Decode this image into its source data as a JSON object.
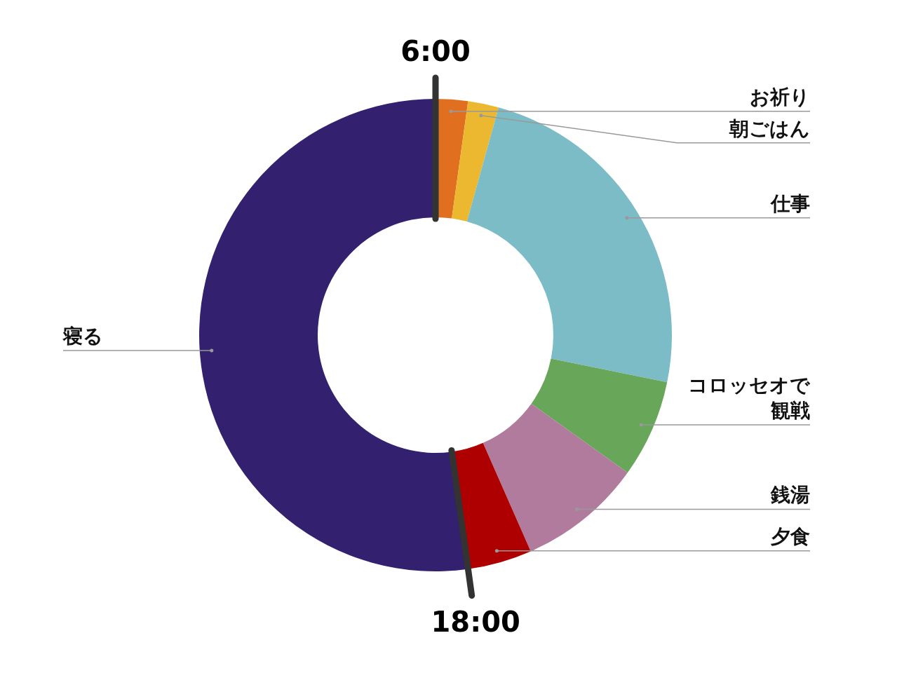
{
  "chart_data": {
    "type": "donut",
    "categories": [
      "お祈り",
      "朝ごはん",
      "仕事",
      "コロッセオで観戦",
      "銭湯",
      "夕食",
      "寝る"
    ],
    "values": [
      2.2,
      2.1,
      23.9,
      6.7,
      8.5,
      4.4,
      52.2
    ],
    "colors": [
      "#e07020",
      "#ebb830",
      "#7bbcc6",
      "#68a759",
      "#b07b9c",
      "#ae0000",
      "#33216f"
    ],
    "annotations": [
      "6:00",
      "18:00"
    ]
  }
}
